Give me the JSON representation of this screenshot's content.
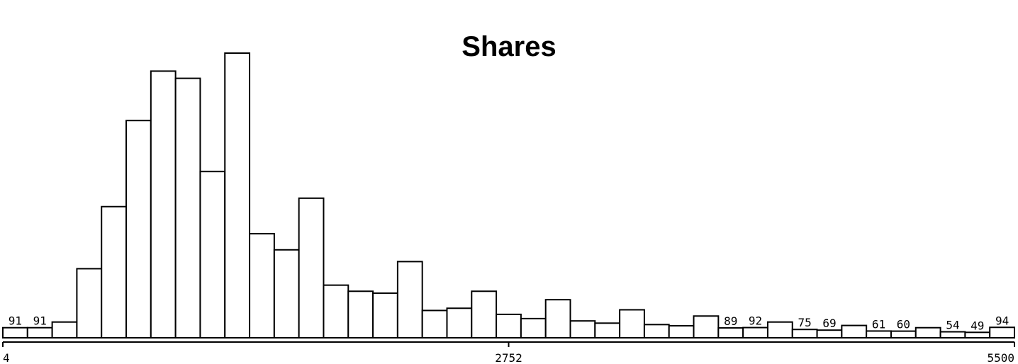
{
  "chart_data": {
    "type": "bar",
    "title": "Shares",
    "x_tick_labels": [
      "4",
      "2752",
      "5500"
    ],
    "xlim": [
      4,
      5500
    ],
    "values": [
      91,
      91,
      142,
      622,
      1181,
      1956,
      2401,
      2336,
      1497,
      2563,
      937,
      792,
      1257,
      474,
      419,
      402,
      686,
      246,
      266,
      419,
      211,
      173,
      343,
      152,
      132,
      252,
      119,
      108,
      196,
      89,
      92,
      142,
      75,
      69,
      111,
      61,
      60,
      91,
      54,
      49,
      94
    ],
    "data_labels": {
      "0": "91",
      "1": "91",
      "29": "89",
      "30": "92",
      "32": "75",
      "33": "69",
      "35": "61",
      "36": "60",
      "38": "54",
      "39": "49",
      "40": "94"
    },
    "ylim": [
      0,
      2563
    ],
    "grid": false,
    "legend": "none"
  }
}
